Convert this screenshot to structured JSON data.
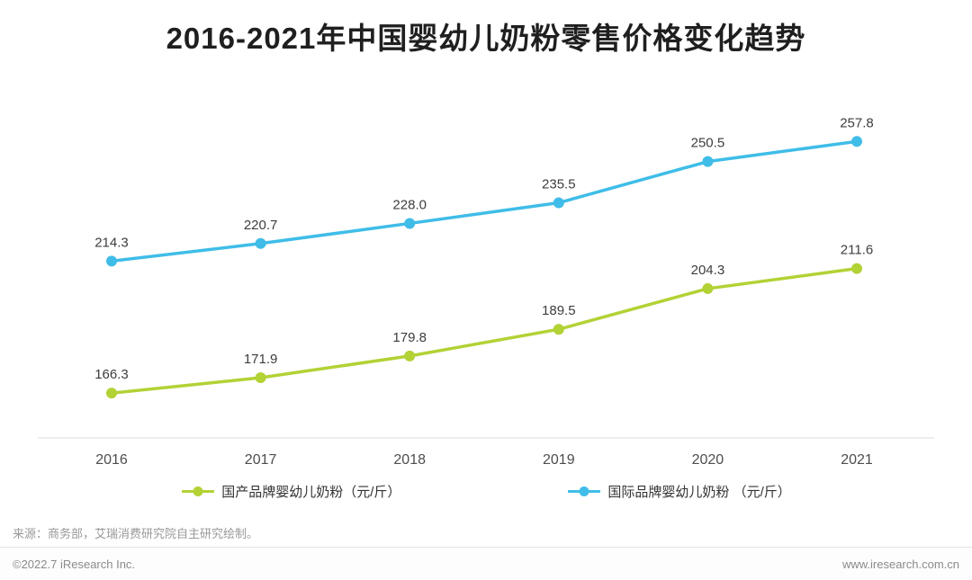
{
  "title": "2016-2021年中国婴幼儿奶粉零售价格变化趋势",
  "chart_data": {
    "type": "line",
    "x": [
      "2016",
      "2017",
      "2018",
      "2019",
      "2020",
      "2021"
    ],
    "series": [
      {
        "name": "国产品牌婴幼儿奶粉（元/斤）",
        "color": "#b2d235",
        "values": [
          166.3,
          171.9,
          179.8,
          189.5,
          204.3,
          211.6
        ]
      },
      {
        "name": "国际品牌婴幼儿奶粉 （元/斤）",
        "color": "#3fbde8",
        "values": [
          214.3,
          220.7,
          228.0,
          235.5,
          250.5,
          257.8
        ]
      }
    ],
    "ylim": [
      150,
      270
    ],
    "grid": false,
    "legend_position": "bottom",
    "data_labels": true,
    "axis_line_color": "#dcdcdc",
    "tick_label_color": "#4d4d4d",
    "data_label_color": "#3d3d3d"
  },
  "source_note": "来源：商务部，艾瑞消费研究院自主研究绘制。",
  "footer": {
    "copyright": "©2022.7 iResearch Inc.",
    "website": "www.iresearch.com.cn"
  }
}
